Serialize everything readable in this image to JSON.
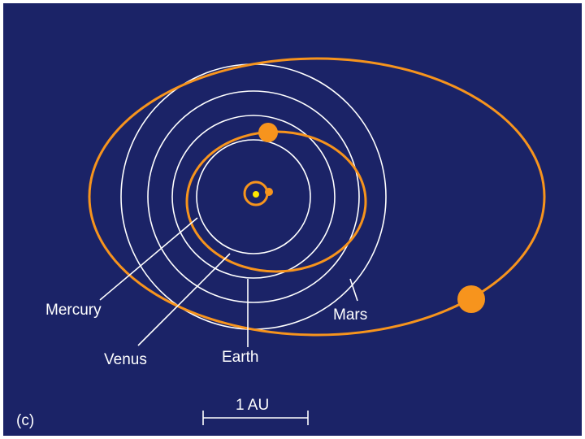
{
  "panel_label": "(c)",
  "colors": {
    "background": "#1b2367",
    "white_orbit": "#ffffff",
    "orange_orbit": "#f7941d",
    "sun_core": "#ffe600"
  },
  "labels": {
    "mercury": "Mercury",
    "venus": "Venus",
    "earth": "Earth",
    "mars": "Mars"
  },
  "scale_bar": {
    "label": "1 AU"
  }
}
